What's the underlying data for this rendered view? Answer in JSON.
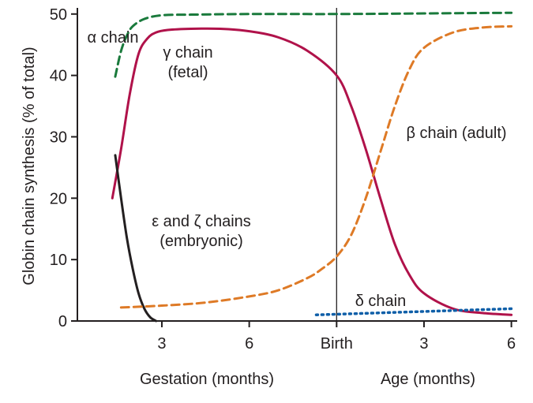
{
  "chart_data": {
    "type": "line",
    "title": "",
    "ylabel": "Globin chain synthesis (% of total)",
    "ylim": [
      0,
      51
    ],
    "yticks": [
      0,
      10,
      20,
      30,
      40,
      50
    ],
    "x_segments": [
      {
        "label": "Gestation (months)",
        "ticks": [
          "3",
          "6"
        ]
      },
      {
        "label": "Age (months)",
        "ticks": [
          "3",
          "6"
        ]
      }
    ],
    "x_divider_label": "Birth",
    "x_units_note": "x is months relative to birth (gestation: negative, 3 and 6 months of gestation at -6 and -3; age: positive)",
    "xlim": [
      -8.9,
      6.2
    ],
    "grid": false,
    "legend": "none",
    "series": [
      {
        "name": "α chain",
        "color": "#1a7a3c",
        "dash": "dashed",
        "x": [
          -7.6,
          -7.4,
          -7.2,
          -7.0,
          -6.6,
          -6.0,
          -5.0,
          -3.0,
          0.0,
          3.0,
          6.0
        ],
        "y": [
          39.8,
          44.0,
          46.5,
          48.0,
          49.2,
          49.8,
          49.9,
          50.0,
          50.0,
          50.1,
          50.2
        ]
      },
      {
        "name": "γ chain (fetal)",
        "color": "#b0124a",
        "dash": "solid",
        "x": [
          -7.7,
          -7.4,
          -7.1,
          -6.8,
          -6.5,
          -6.2,
          -5.8,
          -5.0,
          -4.0,
          -3.0,
          -2.0,
          -1.0,
          0.0,
          0.5,
          1.0,
          1.5,
          2.0,
          2.5,
          3.0,
          4.0,
          5.0,
          6.0
        ],
        "y": [
          20.0,
          28.0,
          37.0,
          43.5,
          46.0,
          47.0,
          47.4,
          47.6,
          47.6,
          47.2,
          46.2,
          44.0,
          40.0,
          35.0,
          28.0,
          20.0,
          12.5,
          7.5,
          4.5,
          2.0,
          1.3,
          1.0
        ]
      },
      {
        "name": "ε and ζ chains (embryonic)",
        "color": "#231f20",
        "dash": "solid",
        "x": [
          -7.6,
          -7.4,
          -7.2,
          -7.0,
          -6.8,
          -6.6,
          -6.4,
          -6.2
        ],
        "y": [
          27.0,
          20.0,
          13.5,
          8.5,
          4.5,
          2.0,
          0.6,
          0.0
        ]
      },
      {
        "name": "β chain (adult)",
        "color": "#de7a26",
        "dash": "dashed",
        "x": [
          -7.4,
          -6.0,
          -4.5,
          -3.0,
          -2.0,
          -1.0,
          -0.5,
          0.0,
          0.5,
          1.0,
          1.5,
          2.0,
          2.5,
          3.0,
          4.0,
          5.0,
          6.0
        ],
        "y": [
          2.2,
          2.5,
          3.0,
          4.0,
          5.0,
          7.0,
          8.5,
          10.5,
          14.0,
          20.0,
          27.5,
          35.0,
          41.0,
          44.5,
          47.0,
          47.8,
          48.0
        ]
      },
      {
        "name": "δ chain",
        "color": "#0f5fa8",
        "dash": "dotted",
        "x": [
          -0.7,
          0.0,
          2.0,
          4.0,
          6.0
        ],
        "y": [
          1.0,
          1.1,
          1.4,
          1.7,
          2.0
        ]
      }
    ],
    "annotations": [
      {
        "lines": [
          "α chain"
        ],
        "color": "#1a7a3c"
      },
      {
        "lines": [
          "γ chain",
          "(fetal)"
        ],
        "color": "#b0124a"
      },
      {
        "lines": [
          "ε and ζ chains",
          "(embryonic)"
        ],
        "color": "#231f20"
      },
      {
        "lines": [
          "β chain (adult)"
        ],
        "color": "#de7a26"
      },
      {
        "lines": [
          "δ chain"
        ],
        "color": "#0f5fa8"
      }
    ]
  }
}
